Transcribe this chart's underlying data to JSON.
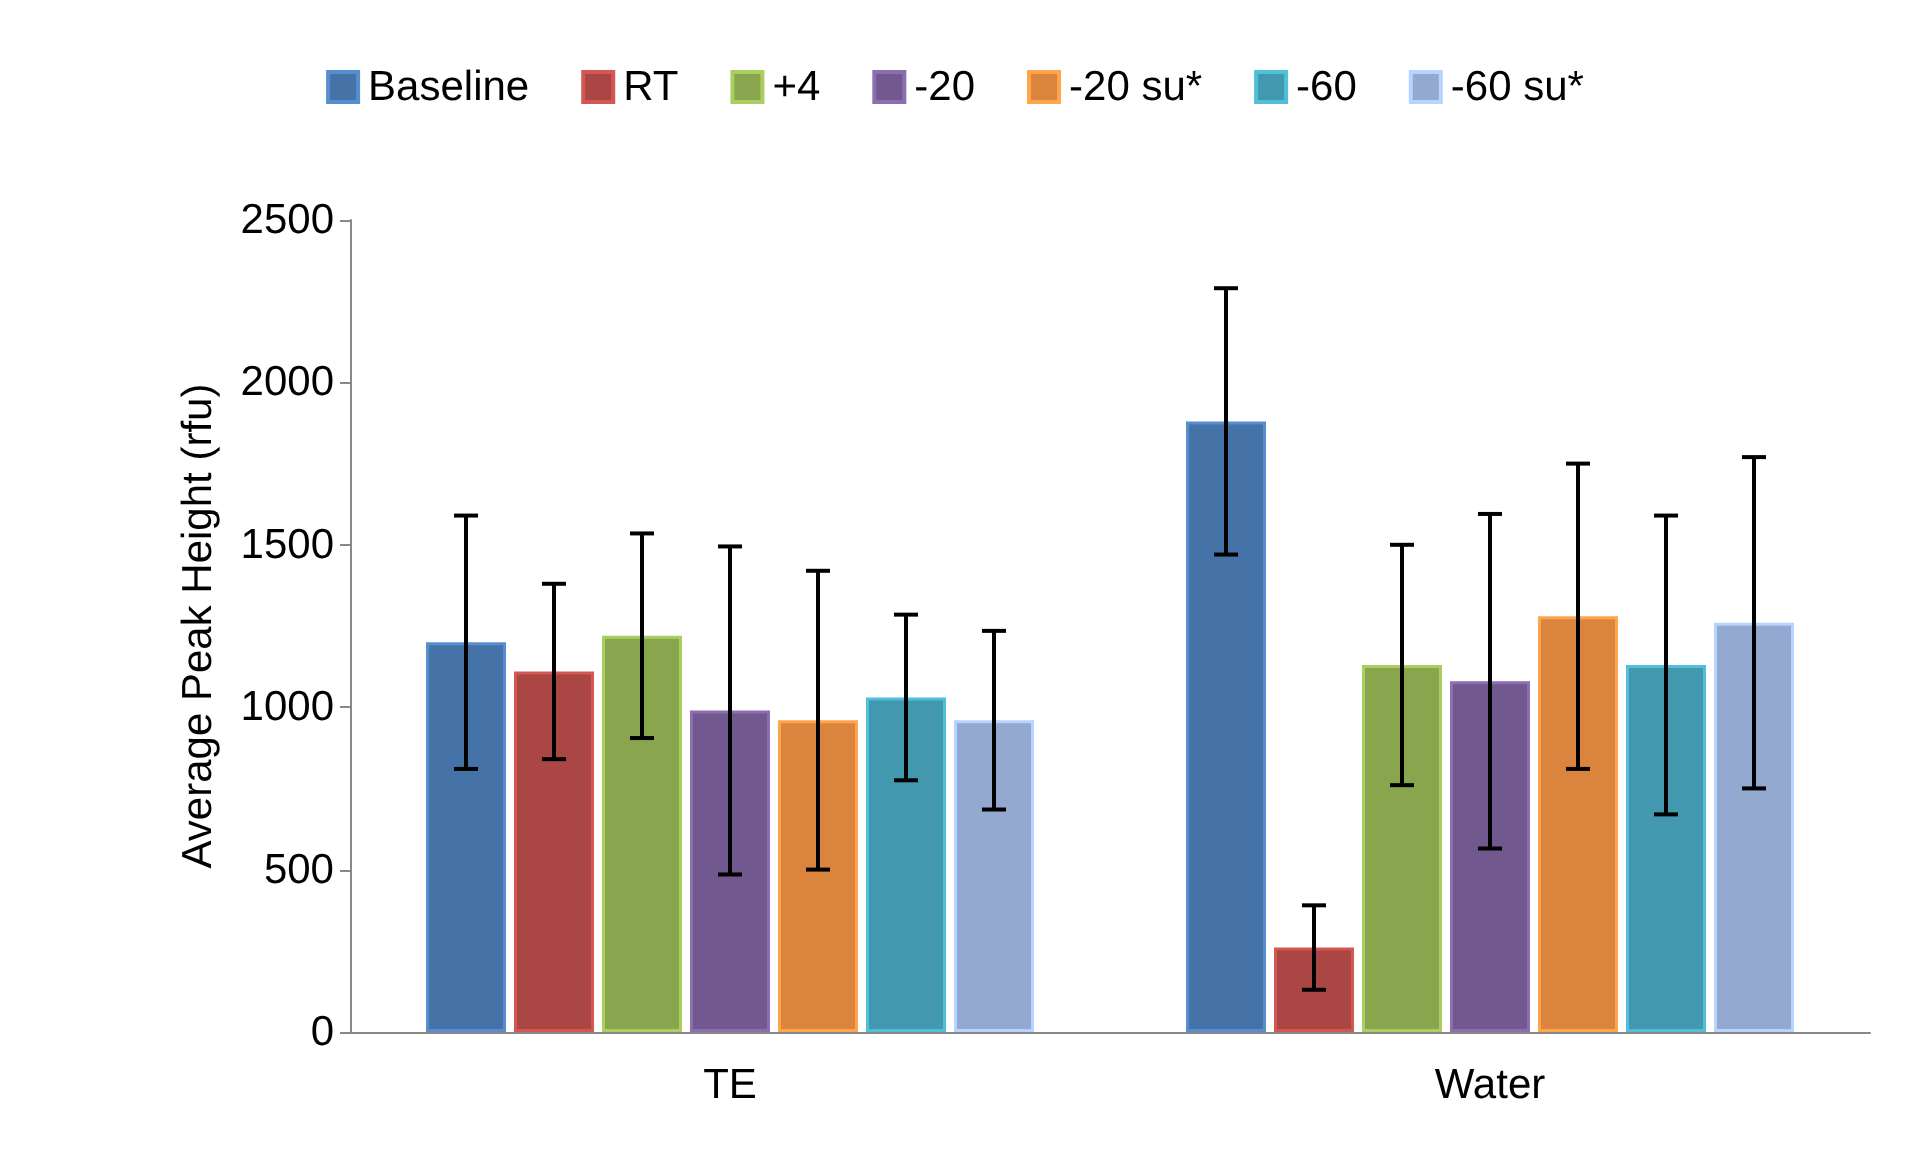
{
  "chart_data": {
    "type": "bar",
    "ylabel": "Average Peak Height (rfu)",
    "categories": [
      "TE",
      "Water"
    ],
    "series": [
      {
        "name": "Baseline",
        "color": "#4572a7",
        "values": [
          1200,
          1880
        ],
        "errors": [
          390,
          410
        ]
      },
      {
        "name": "RT",
        "color": "#aa4643",
        "values": [
          1110,
          260
        ],
        "errors": [
          270,
          130
        ]
      },
      {
        "name": "+4",
        "color": "#89a54e",
        "values": [
          1220,
          1130
        ],
        "errors": [
          315,
          370
        ]
      },
      {
        "name": "-20",
        "color": "#71588f",
        "values": [
          990,
          1080
        ],
        "errors": [
          505,
          515
        ]
      },
      {
        "name": "-20 su*",
        "color": "#db843d",
        "values": [
          960,
          1280
        ],
        "errors": [
          460,
          470
        ]
      },
      {
        "name": "-60",
        "color": "#4198af",
        "values": [
          1030,
          1130
        ],
        "errors": [
          255,
          460
        ]
      },
      {
        "name": "-60 su*",
        "color": "#93a9cf",
        "values": [
          960,
          1260
        ],
        "errors": [
          275,
          510
        ]
      }
    ],
    "ylim": [
      0,
      2500
    ],
    "yticks": [
      0,
      500,
      1000,
      1500,
      2000,
      2500
    ],
    "grid": false,
    "legend": "top"
  }
}
